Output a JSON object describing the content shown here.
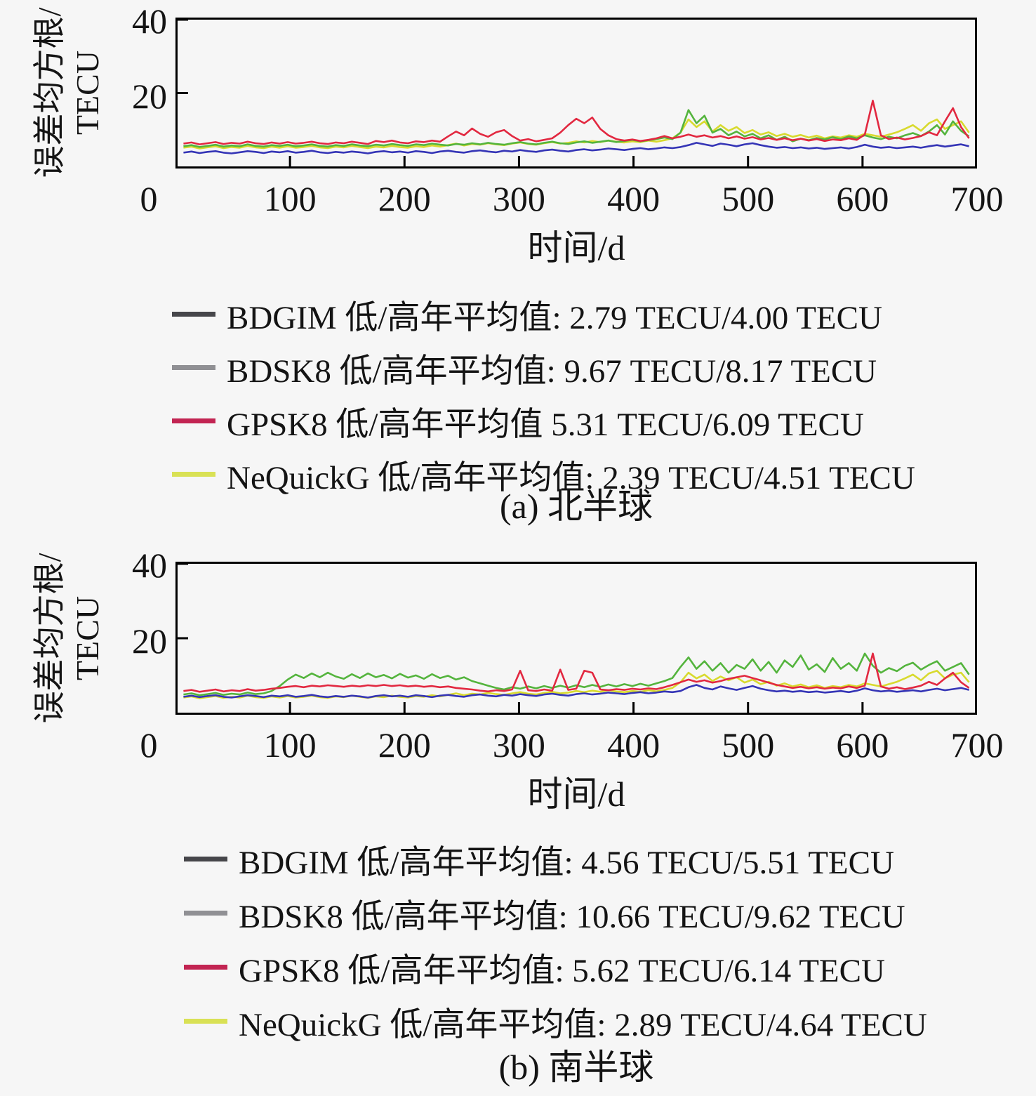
{
  "page": {
    "background_color": "#f6f6f6",
    "axis_color": "#000000",
    "text_color": "#141414"
  },
  "chart_data": [
    {
      "type": "line",
      "title": "(a) 北半球",
      "xlabel": "时间/d",
      "ylabel_line1": "误差均方根/",
      "ylabel_line2": "TECU",
      "xlim": [
        0,
        700
      ],
      "ylim": [
        0,
        40
      ],
      "x_ticks": [
        0,
        100,
        200,
        300,
        400,
        500,
        600,
        700
      ],
      "y_ticks": [
        0,
        20,
        40
      ],
      "grid": false,
      "legend_position": "below",
      "x_start": 7,
      "x_step": 7,
      "series": [
        {
          "name": "BDGIM",
          "legend_label": "BDGIM 低/高年平均值: 2.79 TECU/4.00 TECU",
          "low_year_mean_tecu": 2.79,
          "high_year_mean_tecu": 4.0,
          "legend_swatch_color": "#46464a",
          "line_color": "#3535b6",
          "values": [
            4.2,
            4.5,
            4.1,
            4.4,
            4.6,
            4.2,
            4.0,
            4.3,
            4.6,
            4.4,
            4.1,
            4.5,
            4.3,
            4.6,
            4.2,
            4.4,
            4.7,
            4.3,
            4.1,
            4.4,
            4.2,
            4.5,
            4.3,
            4.0,
            4.4,
            4.6,
            4.3,
            4.5,
            4.2,
            4.6,
            4.4,
            4.1,
            4.5,
            4.7,
            4.4,
            4.2,
            4.6,
            4.8,
            4.5,
            4.3,
            4.7,
            4.5,
            4.9,
            4.6,
            4.4,
            4.8,
            5.0,
            4.7,
            4.5,
            4.9,
            5.1,
            4.8,
            5.0,
            5.3,
            5.1,
            4.9,
            5.2,
            5.4,
            5.1,
            5.3,
            5.6,
            5.4,
            5.7,
            6.2,
            6.8,
            6.4,
            6.0,
            6.6,
            6.3,
            5.9,
            6.4,
            6.7,
            6.2,
            5.8,
            5.5,
            5.7,
            5.4,
            5.6,
            5.3,
            5.5,
            5.2,
            5.4,
            5.6,
            5.3,
            5.7,
            6.3,
            5.8,
            5.5,
            5.7,
            5.4,
            5.6,
            5.8,
            5.5,
            5.9,
            6.2,
            5.8,
            6.1,
            6.4,
            5.9
          ]
        },
        {
          "name": "BDSK8",
          "legend_label": "BDSK8 低/高年平均值: 9.67 TECU/8.17 TECU",
          "low_year_mean_tecu": 9.67,
          "high_year_mean_tecu": 8.17,
          "legend_swatch_color": "#909094",
          "line_color": "#54b43d",
          "values": [
            5.9,
            6.2,
            5.7,
            6.0,
            6.3,
            5.8,
            6.1,
            5.9,
            6.4,
            6.0,
            5.8,
            6.2,
            6.0,
            6.3,
            5.9,
            6.1,
            6.4,
            6.0,
            5.8,
            6.2,
            6.0,
            6.4,
            6.1,
            5.9,
            6.3,
            6.1,
            6.5,
            6.2,
            6.0,
            6.4,
            6.2,
            6.6,
            6.3,
            6.1,
            6.5,
            6.3,
            6.7,
            6.4,
            6.8,
            6.5,
            6.3,
            6.7,
            7.0,
            6.6,
            6.4,
            6.8,
            7.1,
            6.7,
            6.5,
            6.9,
            7.2,
            6.8,
            7.1,
            7.4,
            7.0,
            7.3,
            7.6,
            7.2,
            7.5,
            7.8,
            8.2,
            7.8,
            9.5,
            15.5,
            12.0,
            14.0,
            9.5,
            10.5,
            8.8,
            9.8,
            8.5,
            9.2,
            8.0,
            8.8,
            7.6,
            8.4,
            7.2,
            7.9,
            7.5,
            8.1,
            7.7,
            8.3,
            7.8,
            8.5,
            8.0,
            8.8,
            8.2,
            7.8,
            8.4,
            8.0,
            8.8,
            9.4,
            8.6,
            9.8,
            11.5,
            9.0,
            12.5,
            10.0,
            8.5
          ]
        },
        {
          "name": "GPSK8",
          "legend_label": "GPSK8 低/高年平均值 5.31 TECU/6.09 TECU",
          "low_year_mean_tecu": 5.31,
          "high_year_mean_tecu": 6.09,
          "legend_swatch_color": "#c22452",
          "line_color": "#e22840",
          "values": [
            6.6,
            6.9,
            6.4,
            6.7,
            7.0,
            6.5,
            6.8,
            6.6,
            7.1,
            6.7,
            6.5,
            6.9,
            6.6,
            7.0,
            6.6,
            6.8,
            7.1,
            6.7,
            6.5,
            6.9,
            6.7,
            7.1,
            6.8,
            6.5,
            7.3,
            7.0,
            7.4,
            6.9,
            6.7,
            7.2,
            7.0,
            7.4,
            7.1,
            8.5,
            9.8,
            8.8,
            10.6,
            9.2,
            8.4,
            9.6,
            10.2,
            8.6,
            7.4,
            7.8,
            7.2,
            7.6,
            8.0,
            9.5,
            11.5,
            13.2,
            12.0,
            13.5,
            10.5,
            8.8,
            7.8,
            7.4,
            7.7,
            7.3,
            7.6,
            8.0,
            8.6,
            8.0,
            8.4,
            9.0,
            8.4,
            8.8,
            8.2,
            8.6,
            8.0,
            8.5,
            7.9,
            8.3,
            7.7,
            8.1,
            7.6,
            8.0,
            7.5,
            7.9,
            7.4,
            7.8,
            7.3,
            7.7,
            7.5,
            8.0,
            7.6,
            9.0,
            18.0,
            8.8,
            7.8,
            8.2,
            7.7,
            8.1,
            8.6,
            9.6,
            8.8,
            12.5,
            16.0,
            11.0,
            8.0
          ]
        },
        {
          "name": "NeQuickG",
          "legend_label": "NeQuickG 低/高年平均值: 2.39 TECU/4.51 TECU",
          "low_year_mean_tecu": 2.39,
          "high_year_mean_tecu": 4.51,
          "legend_swatch_color": "#d9e155",
          "line_color": "#d8da2e",
          "values": [
            5.5,
            5.8,
            5.3,
            5.6,
            5.9,
            5.4,
            5.7,
            5.5,
            6.0,
            5.6,
            5.4,
            5.8,
            5.5,
            5.9,
            5.5,
            5.7,
            6.0,
            5.6,
            5.4,
            5.8,
            5.6,
            6.0,
            5.7,
            5.4,
            5.8,
            5.6,
            6.0,
            5.7,
            5.5,
            5.9,
            5.7,
            6.1,
            5.8,
            6.2,
            6.6,
            6.1,
            6.5,
            6.3,
            6.7,
            6.4,
            6.2,
            6.6,
            6.9,
            6.5,
            6.3,
            6.7,
            7.0,
            6.6,
            6.8,
            7.2,
            6.9,
            7.3,
            7.0,
            7.4,
            7.1,
            6.9,
            7.2,
            7.0,
            7.4,
            7.1,
            7.5,
            8.0,
            9.5,
            13.0,
            11.0,
            12.5,
            9.8,
            11.5,
            10.0,
            11.0,
            9.4,
            10.2,
            9.0,
            9.6,
            8.6,
            9.2,
            8.4,
            8.9,
            8.2,
            8.7,
            8.0,
            8.5,
            8.2,
            8.8,
            8.4,
            9.2,
            8.8,
            8.4,
            9.0,
            9.6,
            10.5,
            11.5,
            10.0,
            12.0,
            13.0,
            10.5,
            11.5,
            12.5,
            9.5
          ]
        }
      ]
    },
    {
      "type": "line",
      "title": "(b) 南半球",
      "xlabel": "时间/d",
      "ylabel_line1": "误差均方根/",
      "ylabel_line2": "TECU",
      "xlim": [
        0,
        700
      ],
      "ylim": [
        0,
        40
      ],
      "x_ticks": [
        0,
        100,
        200,
        300,
        400,
        500,
        600,
        700
      ],
      "y_ticks": [
        0,
        20,
        40
      ],
      "grid": false,
      "legend_position": "below",
      "x_start": 7,
      "x_step": 7,
      "series": [
        {
          "name": "BDGIM",
          "legend_label": "BDGIM 低/高年平均值: 4.56 TECU/5.51 TECU",
          "low_year_mean_tecu": 4.56,
          "high_year_mean_tecu": 5.51,
          "legend_swatch_color": "#46464a",
          "line_color": "#3535b6",
          "values": [
            4.7,
            5.0,
            4.6,
            4.9,
            5.1,
            4.7,
            4.5,
            4.8,
            5.1,
            4.9,
            4.6,
            5.0,
            4.8,
            5.1,
            4.7,
            4.9,
            5.2,
            4.8,
            4.6,
            4.9,
            4.7,
            5.0,
            4.8,
            4.5,
            4.9,
            5.1,
            4.8,
            5.0,
            4.7,
            5.1,
            4.9,
            4.6,
            5.0,
            5.2,
            4.9,
            4.7,
            5.1,
            5.3,
            5.0,
            4.8,
            5.2,
            5.0,
            5.4,
            5.1,
            4.9,
            5.3,
            5.5,
            5.2,
            5.0,
            5.4,
            5.6,
            5.3,
            5.5,
            5.8,
            5.6,
            5.4,
            5.7,
            5.9,
            5.6,
            5.8,
            6.1,
            5.9,
            6.2,
            7.2,
            7.8,
            7.0,
            6.6,
            7.4,
            6.9,
            6.5,
            7.0,
            7.5,
            6.8,
            6.4,
            6.1,
            6.3,
            6.0,
            6.2,
            5.9,
            6.1,
            5.8,
            6.0,
            6.2,
            5.9,
            6.3,
            6.9,
            6.4,
            6.1,
            6.3,
            6.0,
            6.2,
            6.4,
            6.1,
            6.5,
            6.8,
            6.4,
            6.7,
            7.0,
            6.5
          ]
        },
        {
          "name": "BDSK8",
          "legend_label": "BDSK8 低/高年平均值: 10.66 TECU/9.62 TECU",
          "low_year_mean_tecu": 10.66,
          "high_year_mean_tecu": 9.62,
          "legend_swatch_color": "#909094",
          "line_color": "#54b43d",
          "values": [
            5.3,
            5.6,
            5.1,
            5.4,
            5.7,
            5.2,
            5.5,
            5.3,
            5.8,
            5.4,
            5.6,
            6.2,
            7.5,
            9.2,
            10.5,
            9.6,
            10.8,
            9.8,
            11.0,
            10.0,
            9.4,
            10.6,
            9.6,
            10.8,
            9.8,
            10.4,
            9.5,
            10.7,
            9.7,
            10.3,
            9.4,
            10.6,
            9.6,
            10.2,
            9.2,
            9.8,
            8.8,
            8.2,
            7.6,
            7.0,
            6.6,
            7.2,
            6.8,
            7.4,
            6.9,
            7.5,
            7.0,
            7.6,
            7.1,
            7.7,
            7.2,
            7.8,
            7.3,
            7.9,
            7.4,
            8.0,
            7.5,
            8.1,
            7.6,
            8.2,
            8.8,
            9.6,
            12.5,
            15.0,
            12.0,
            14.0,
            11.5,
            13.5,
            11.0,
            13.0,
            12.0,
            14.5,
            11.5,
            13.8,
            11.0,
            14.2,
            12.5,
            15.5,
            11.8,
            13.2,
            11.2,
            14.8,
            12.0,
            13.5,
            11.5,
            16.0,
            12.8,
            11.0,
            12.2,
            11.4,
            12.8,
            13.6,
            11.8,
            13.0,
            14.0,
            11.5,
            12.5,
            13.5,
            10.5
          ]
        },
        {
          "name": "GPSK8",
          "legend_label": "GPSK8 低/高年平均值: 5.62 TECU/6.14 TECU",
          "low_year_mean_tecu": 5.62,
          "high_year_mean_tecu": 6.14,
          "legend_swatch_color": "#c22452",
          "line_color": "#e22840",
          "values": [
            6.2,
            6.5,
            6.0,
            6.3,
            6.6,
            6.1,
            6.4,
            6.2,
            6.7,
            6.3,
            6.5,
            6.8,
            7.0,
            7.3,
            7.5,
            7.2,
            7.6,
            7.4,
            7.7,
            7.5,
            7.3,
            7.6,
            7.4,
            7.7,
            7.5,
            7.8,
            7.5,
            7.7,
            7.4,
            7.6,
            7.3,
            7.5,
            7.2,
            7.4,
            7.0,
            6.8,
            6.6,
            6.3,
            6.1,
            6.4,
            6.2,
            6.6,
            11.5,
            6.4,
            6.2,
            6.6,
            6.3,
            11.8,
            6.5,
            6.8,
            11.5,
            11.0,
            6.6,
            6.4,
            6.7,
            6.5,
            6.8,
            6.6,
            6.9,
            6.7,
            7.2,
            7.8,
            8.5,
            9.2,
            8.6,
            9.0,
            8.4,
            8.8,
            9.4,
            9.8,
            10.2,
            9.6,
            9.0,
            8.4,
            7.8,
            7.4,
            7.0,
            7.3,
            6.9,
            7.2,
            6.8,
            7.1,
            6.9,
            7.4,
            7.0,
            7.6,
            16.0,
            7.4,
            6.8,
            7.2,
            6.7,
            7.1,
            7.6,
            8.6,
            7.8,
            9.5,
            11.0,
            8.5,
            7.0
          ]
        },
        {
          "name": "NeQuickG",
          "legend_label": "NeQuickG 低/高年平均值: 2.89 TECU/4.64 TECU",
          "low_year_mean_tecu": 2.89,
          "high_year_mean_tecu": 4.64,
          "legend_swatch_color": "#d9e155",
          "line_color": "#d8da2e",
          "values": [
            4.5,
            4.8,
            4.3,
            4.6,
            4.9,
            4.4,
            4.7,
            4.5,
            5.0,
            4.6,
            4.4,
            4.8,
            4.5,
            4.9,
            4.5,
            4.7,
            5.0,
            4.6,
            4.4,
            4.8,
            4.6,
            5.0,
            4.7,
            4.4,
            4.8,
            4.6,
            5.0,
            4.7,
            4.5,
            4.9,
            4.7,
            5.1,
            4.8,
            5.2,
            5.6,
            5.1,
            5.5,
            5.3,
            5.7,
            5.4,
            5.2,
            5.6,
            5.9,
            5.5,
            5.3,
            5.7,
            6.0,
            5.6,
            5.8,
            6.2,
            5.9,
            6.3,
            6.0,
            6.4,
            6.1,
            5.9,
            6.2,
            6.0,
            6.4,
            6.1,
            6.5,
            7.0,
            8.5,
            11.0,
            9.5,
            10.5,
            8.8,
            10.0,
            9.0,
            9.8,
            8.4,
            9.2,
            8.0,
            8.6,
            7.6,
            8.2,
            7.4,
            7.9,
            7.2,
            7.7,
            7.0,
            7.5,
            7.2,
            7.8,
            7.4,
            8.2,
            7.8,
            7.4,
            8.0,
            8.6,
            9.5,
            10.5,
            9.0,
            10.8,
            11.5,
            9.5,
            10.5,
            11.0,
            8.5
          ]
        }
      ]
    }
  ]
}
